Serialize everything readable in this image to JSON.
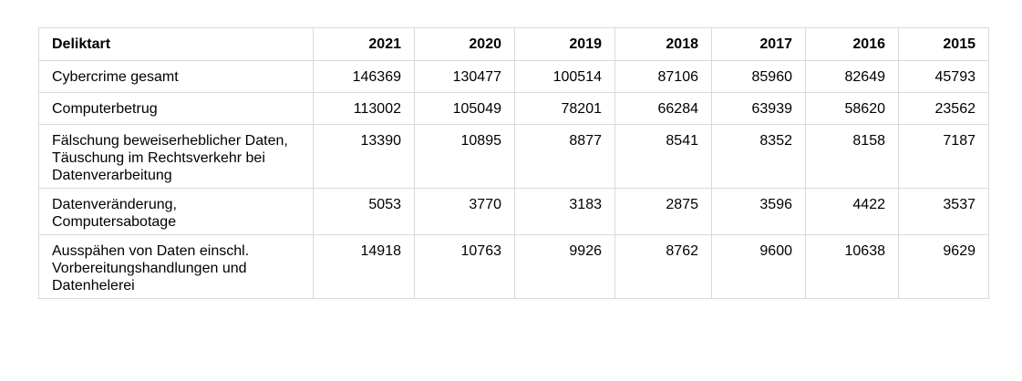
{
  "table": {
    "headers": [
      "Deliktart",
      "2021",
      "2020",
      "2019",
      "2018",
      "2017",
      "2016",
      "2015"
    ],
    "rows": [
      {
        "label": "Cybercrime gesamt",
        "values": [
          "146369",
          "130477",
          "100514",
          "87106",
          "85960",
          "82649",
          "45793"
        ]
      },
      {
        "label": "Computerbetrug",
        "values": [
          "113002",
          "105049",
          "78201",
          "66284",
          "63939",
          "58620",
          "23562"
        ]
      },
      {
        "label": "Fälschung beweiserheblicher Daten, Täuschung im Rechtsverkehr bei Datenverarbeitung",
        "values": [
          "13390",
          "10895",
          "8877",
          "8541",
          "8352",
          "8158",
          "7187"
        ]
      },
      {
        "label": "Datenveränderung, Computersabotage",
        "values": [
          "5053",
          "3770",
          "3183",
          "2875",
          "3596",
          "4422",
          "3537"
        ]
      },
      {
        "label": "Ausspähen von Daten einschl. Vorbereitungshandlungen und Datenhelerei",
        "values": [
          "14918",
          "10763",
          "9926",
          "8762",
          "9600",
          "10638",
          "9629"
        ]
      }
    ]
  }
}
